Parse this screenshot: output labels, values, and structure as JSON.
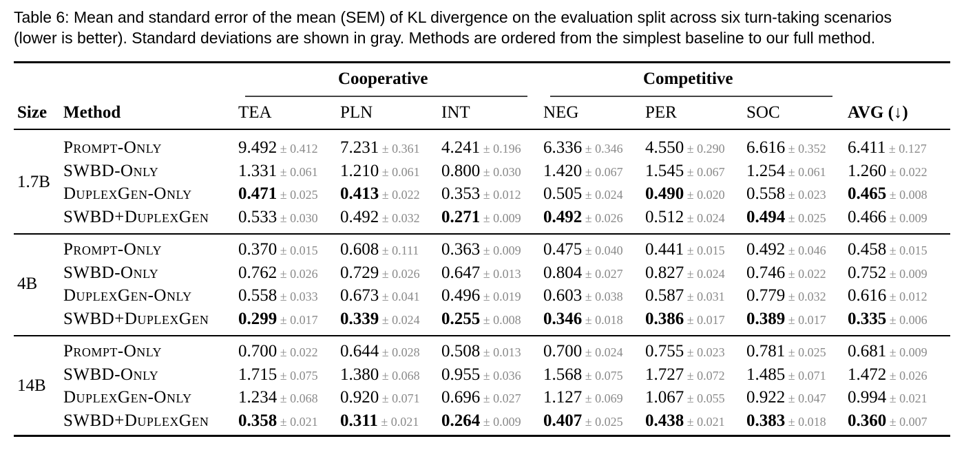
{
  "caption": {
    "line1": "Table 6: Mean and standard error of the mean (SEM) of KL divergence on the evaluation split across six turn-taking scenarios",
    "line2": "(lower is better). Standard deviations are shown in gray. Methods are ordered from the simplest baseline to our full method."
  },
  "header": {
    "group_cooperative": "Cooperative",
    "group_competitive": "Competitive",
    "size": "Size",
    "method": "Method",
    "columns": [
      "TEA",
      "PLN",
      "INT",
      "NEG",
      "PER",
      "SOC",
      "AVG (↓)"
    ]
  },
  "table": {
    "groups": [
      {
        "size": "1.7B",
        "rows": [
          {
            "method": "Prompt-Only",
            "cells": [
              {
                "v": "9.492",
                "s": "± 0.412",
                "b": false
              },
              {
                "v": "7.231",
                "s": "± 0.361",
                "b": false
              },
              {
                "v": "4.241",
                "s": "± 0.196",
                "b": false
              },
              {
                "v": "6.336",
                "s": "± 0.346",
                "b": false
              },
              {
                "v": "4.550",
                "s": "± 0.290",
                "b": false
              },
              {
                "v": "6.616",
                "s": "± 0.352",
                "b": false
              },
              {
                "v": "6.411",
                "s": "± 0.127",
                "b": false
              }
            ]
          },
          {
            "method": "SWBD-Only",
            "cells": [
              {
                "v": "1.331",
                "s": "± 0.061",
                "b": false
              },
              {
                "v": "1.210",
                "s": "± 0.061",
                "b": false
              },
              {
                "v": "0.800",
                "s": "± 0.030",
                "b": false
              },
              {
                "v": "1.420",
                "s": "± 0.067",
                "b": false
              },
              {
                "v": "1.545",
                "s": "± 0.067",
                "b": false
              },
              {
                "v": "1.254",
                "s": "± 0.061",
                "b": false
              },
              {
                "v": "1.260",
                "s": "± 0.022",
                "b": false
              }
            ]
          },
          {
            "method": "DuplexGen-Only",
            "cells": [
              {
                "v": "0.471",
                "s": "± 0.025",
                "b": true
              },
              {
                "v": "0.413",
                "s": "± 0.022",
                "b": true
              },
              {
                "v": "0.353",
                "s": "± 0.012",
                "b": false
              },
              {
                "v": "0.505",
                "s": "± 0.024",
                "b": false
              },
              {
                "v": "0.490",
                "s": "± 0.020",
                "b": true
              },
              {
                "v": "0.558",
                "s": "± 0.023",
                "b": false
              },
              {
                "v": "0.465",
                "s": "± 0.008",
                "b": true
              }
            ]
          },
          {
            "method": "SWBD+DuplexGen",
            "cells": [
              {
                "v": "0.533",
                "s": "± 0.030",
                "b": false
              },
              {
                "v": "0.492",
                "s": "± 0.032",
                "b": false
              },
              {
                "v": "0.271",
                "s": "± 0.009",
                "b": true
              },
              {
                "v": "0.492",
                "s": "± 0.026",
                "b": true
              },
              {
                "v": "0.512",
                "s": "± 0.024",
                "b": false
              },
              {
                "v": "0.494",
                "s": "± 0.025",
                "b": true
              },
              {
                "v": "0.466",
                "s": "± 0.009",
                "b": false
              }
            ]
          }
        ]
      },
      {
        "size": "4B",
        "rows": [
          {
            "method": "Prompt-Only",
            "cells": [
              {
                "v": "0.370",
                "s": "± 0.015",
                "b": false
              },
              {
                "v": "0.608",
                "s": "± 0.111",
                "b": false
              },
              {
                "v": "0.363",
                "s": "± 0.009",
                "b": false
              },
              {
                "v": "0.475",
                "s": "± 0.040",
                "b": false
              },
              {
                "v": "0.441",
                "s": "± 0.015",
                "b": false
              },
              {
                "v": "0.492",
                "s": "± 0.046",
                "b": false
              },
              {
                "v": "0.458",
                "s": "± 0.015",
                "b": false
              }
            ]
          },
          {
            "method": "SWBD-Only",
            "cells": [
              {
                "v": "0.762",
                "s": "± 0.026",
                "b": false
              },
              {
                "v": "0.729",
                "s": "± 0.026",
                "b": false
              },
              {
                "v": "0.647",
                "s": "± 0.013",
                "b": false
              },
              {
                "v": "0.804",
                "s": "± 0.027",
                "b": false
              },
              {
                "v": "0.827",
                "s": "± 0.024",
                "b": false
              },
              {
                "v": "0.746",
                "s": "± 0.022",
                "b": false
              },
              {
                "v": "0.752",
                "s": "± 0.009",
                "b": false
              }
            ]
          },
          {
            "method": "DuplexGen-Only",
            "cells": [
              {
                "v": "0.558",
                "s": "± 0.033",
                "b": false
              },
              {
                "v": "0.673",
                "s": "± 0.041",
                "b": false
              },
              {
                "v": "0.496",
                "s": "± 0.019",
                "b": false
              },
              {
                "v": "0.603",
                "s": "± 0.038",
                "b": false
              },
              {
                "v": "0.587",
                "s": "± 0.031",
                "b": false
              },
              {
                "v": "0.779",
                "s": "± 0.032",
                "b": false
              },
              {
                "v": "0.616",
                "s": "± 0.012",
                "b": false
              }
            ]
          },
          {
            "method": "SWBD+DuplexGen",
            "cells": [
              {
                "v": "0.299",
                "s": "± 0.017",
                "b": true
              },
              {
                "v": "0.339",
                "s": "± 0.024",
                "b": true
              },
              {
                "v": "0.255",
                "s": "± 0.008",
                "b": true
              },
              {
                "v": "0.346",
                "s": "± 0.018",
                "b": true
              },
              {
                "v": "0.386",
                "s": "± 0.017",
                "b": true
              },
              {
                "v": "0.389",
                "s": "± 0.017",
                "b": true
              },
              {
                "v": "0.335",
                "s": "± 0.006",
                "b": true
              }
            ]
          }
        ]
      },
      {
        "size": "14B",
        "rows": [
          {
            "method": "Prompt-Only",
            "cells": [
              {
                "v": "0.700",
                "s": "± 0.022",
                "b": false
              },
              {
                "v": "0.644",
                "s": "± 0.028",
                "b": false
              },
              {
                "v": "0.508",
                "s": "± 0.013",
                "b": false
              },
              {
                "v": "0.700",
                "s": "± 0.024",
                "b": false
              },
              {
                "v": "0.755",
                "s": "± 0.023",
                "b": false
              },
              {
                "v": "0.781",
                "s": "± 0.025",
                "b": false
              },
              {
                "v": "0.681",
                "s": "± 0.009",
                "b": false
              }
            ]
          },
          {
            "method": "SWBD-Only",
            "cells": [
              {
                "v": "1.715",
                "s": "± 0.075",
                "b": false
              },
              {
                "v": "1.380",
                "s": "± 0.068",
                "b": false
              },
              {
                "v": "0.955",
                "s": "± 0.036",
                "b": false
              },
              {
                "v": "1.568",
                "s": "± 0.075",
                "b": false
              },
              {
                "v": "1.727",
                "s": "± 0.072",
                "b": false
              },
              {
                "v": "1.485",
                "s": "± 0.071",
                "b": false
              },
              {
                "v": "1.472",
                "s": "± 0.026",
                "b": false
              }
            ]
          },
          {
            "method": "DuplexGen-Only",
            "cells": [
              {
                "v": "1.234",
                "s": "± 0.068",
                "b": false
              },
              {
                "v": "0.920",
                "s": "± 0.071",
                "b": false
              },
              {
                "v": "0.696",
                "s": "± 0.027",
                "b": false
              },
              {
                "v": "1.127",
                "s": "± 0.069",
                "b": false
              },
              {
                "v": "1.067",
                "s": "± 0.055",
                "b": false
              },
              {
                "v": "0.922",
                "s": "± 0.047",
                "b": false
              },
              {
                "v": "0.994",
                "s": "± 0.021",
                "b": false
              }
            ]
          },
          {
            "method": "SWBD+DuplexGen",
            "cells": [
              {
                "v": "0.358",
                "s": "± 0.021",
                "b": true
              },
              {
                "v": "0.311",
                "s": "± 0.021",
                "b": true
              },
              {
                "v": "0.264",
                "s": "± 0.009",
                "b": true
              },
              {
                "v": "0.407",
                "s": "± 0.025",
                "b": true
              },
              {
                "v": "0.438",
                "s": "± 0.021",
                "b": true
              },
              {
                "v": "0.383",
                "s": "± 0.018",
                "b": true
              },
              {
                "v": "0.360",
                "s": "± 0.007",
                "b": true
              }
            ]
          }
        ]
      }
    ]
  }
}
